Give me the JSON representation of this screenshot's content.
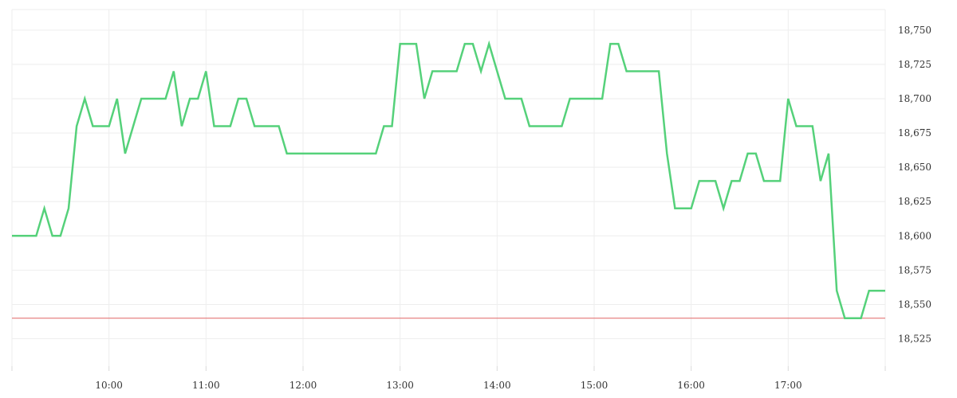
{
  "chart_data": {
    "type": "line",
    "title": "",
    "xlabel": "",
    "ylabel": "",
    "ylim": [
      18505,
      18765
    ],
    "y_ticks": [
      18525,
      18550,
      18575,
      18600,
      18625,
      18650,
      18675,
      18700,
      18725,
      18750
    ],
    "y_tick_labels": [
      "18,525",
      "18,550",
      "18,575",
      "18,600",
      "18,625",
      "18,650",
      "18,675",
      "18,700",
      "18,725",
      "18,750"
    ],
    "x_ticks": [
      "10:00",
      "11:00",
      "12:00",
      "13:00",
      "14:00",
      "15:00",
      "16:00",
      "17:00"
    ],
    "grid": true,
    "legend": "none",
    "series": [
      {
        "color": "#55d17a",
        "points": [
          [
            "09:00",
            18600
          ],
          [
            "09:15",
            18600
          ],
          [
            "09:20",
            18620
          ],
          [
            "09:25",
            18600
          ],
          [
            "09:30",
            18600
          ],
          [
            "09:35",
            18620
          ],
          [
            "09:40",
            18680
          ],
          [
            "09:45",
            18700
          ],
          [
            "09:50",
            18680
          ],
          [
            "10:00",
            18680
          ],
          [
            "10:05",
            18700
          ],
          [
            "10:10",
            18660
          ],
          [
            "10:20",
            18700
          ],
          [
            "10:35",
            18700
          ],
          [
            "10:40",
            18720
          ],
          [
            "10:45",
            18680
          ],
          [
            "10:50",
            18700
          ],
          [
            "10:55",
            18700
          ],
          [
            "11:00",
            18720
          ],
          [
            "11:05",
            18680
          ],
          [
            "11:15",
            18680
          ],
          [
            "11:20",
            18700
          ],
          [
            "11:25",
            18700
          ],
          [
            "11:30",
            18680
          ],
          [
            "11:45",
            18680
          ],
          [
            "11:50",
            18660
          ],
          [
            "12:45",
            18660
          ],
          [
            "12:50",
            18680
          ],
          [
            "12:55",
            18680
          ],
          [
            "13:00",
            18740
          ],
          [
            "13:10",
            18740
          ],
          [
            "13:15",
            18700
          ],
          [
            "13:20",
            18720
          ],
          [
            "13:35",
            18720
          ],
          [
            "13:40",
            18740
          ],
          [
            "13:45",
            18740
          ],
          [
            "13:50",
            18720
          ],
          [
            "13:55",
            18740
          ],
          [
            "14:05",
            18700
          ],
          [
            "14:15",
            18700
          ],
          [
            "14:20",
            18680
          ],
          [
            "14:40",
            18680
          ],
          [
            "14:45",
            18700
          ],
          [
            "15:05",
            18700
          ],
          [
            "15:10",
            18740
          ],
          [
            "15:15",
            18740
          ],
          [
            "15:20",
            18720
          ],
          [
            "15:40",
            18720
          ],
          [
            "15:45",
            18660
          ],
          [
            "15:50",
            18620
          ],
          [
            "16:00",
            18620
          ],
          [
            "16:05",
            18640
          ],
          [
            "16:15",
            18640
          ],
          [
            "16:20",
            18620
          ],
          [
            "16:25",
            18640
          ],
          [
            "16:30",
            18640
          ],
          [
            "16:35",
            18660
          ],
          [
            "16:40",
            18660
          ],
          [
            "16:45",
            18640
          ],
          [
            "16:55",
            18640
          ],
          [
            "17:00",
            18700
          ],
          [
            "17:05",
            18680
          ],
          [
            "17:15",
            18680
          ],
          [
            "17:20",
            18640
          ],
          [
            "17:25",
            18660
          ],
          [
            "17:30",
            18560
          ],
          [
            "17:35",
            18540
          ],
          [
            "17:45",
            18540
          ],
          [
            "17:50",
            18560
          ],
          [
            "18:00",
            18560
          ]
        ]
      }
    ],
    "reference_line": {
      "value": 18540,
      "color": "#e06666"
    }
  }
}
